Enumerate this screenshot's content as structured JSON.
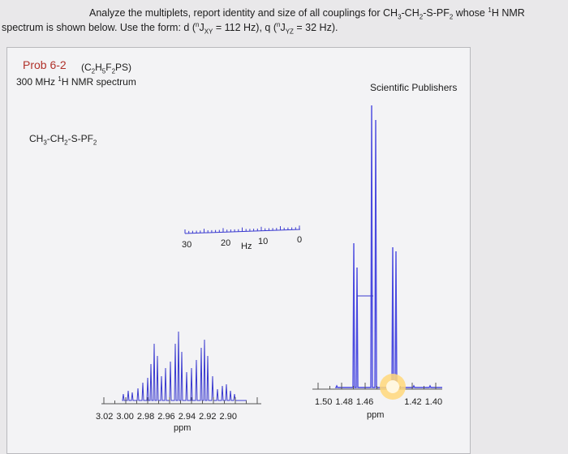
{
  "question": {
    "line1": [
      "Analyze the multiplets, report identity and size of all couplings for CH",
      "3",
      "-CH",
      "2",
      "-S-PF",
      "2",
      " whose ",
      "1",
      "H NMR"
    ],
    "line2": [
      "spectrum is shown below.  Use the form: d (",
      "n",
      "J",
      "XY",
      " = 112 Hz), q (",
      "n",
      "J",
      "YZ",
      " = 32 Hz)."
    ]
  },
  "figure": {
    "problem": "Prob 6-2",
    "formula": [
      "(C",
      "2",
      "H",
      "5",
      "F",
      "2",
      "PS)"
    ],
    "subtitle": [
      "300 MHz ",
      "1",
      "H NMR spectrum"
    ],
    "publisher": "Scientific Publishers",
    "molecule": [
      "CH",
      "3",
      "-CH",
      "2",
      "-S-PF",
      "2"
    ],
    "scale_labels": [
      "30",
      "20",
      "Hz",
      "10",
      "0"
    ],
    "left_axis": {
      "ticks": [
        "3.02",
        "3.00",
        "2.98",
        "2.96",
        "2.94",
        "2.92",
        "2.90"
      ],
      "unit": "ppm"
    },
    "right_axis": {
      "ticks": [
        "1.50",
        "1.48",
        "1.46",
        "1.42",
        "1.40"
      ],
      "unit": "ppm"
    }
  }
}
